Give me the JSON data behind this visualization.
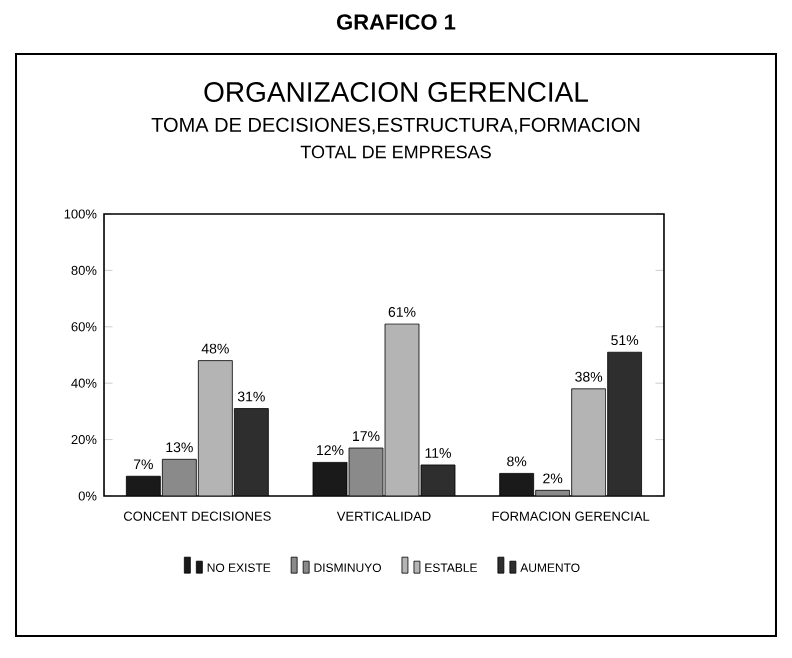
{
  "chart_data": {
    "type": "bar",
    "title": "GRAFICO 1",
    "subtitle": "ORGANIZACION GERENCIAL",
    "annotations": [
      "TOMA DE DECISIONES,ESTRUCTURA,FORMACION",
      "TOTAL DE EMPRESAS"
    ],
    "categories": [
      "CONCENT DECISIONES",
      "VERTICALIDAD",
      "FORMACION GERENCIAL"
    ],
    "series": [
      {
        "name": "NO EXISTE",
        "color": "#1a1a1a",
        "values": [
          7,
          12,
          8
        ],
        "value_labels": [
          "7%",
          "12%",
          "8%"
        ]
      },
      {
        "name": "DISMINUYO",
        "color": "#8a8a8a",
        "values": [
          13,
          17,
          2
        ],
        "value_labels": [
          "13%",
          "17%",
          "2%"
        ]
      },
      {
        "name": "ESTABLE",
        "color": "#b4b4b4",
        "values": [
          48,
          61,
          38
        ],
        "value_labels": [
          "48%",
          "61%",
          "38%"
        ]
      },
      {
        "name": "AUMENTO",
        "color": "#2e2e2e",
        "values": [
          31,
          11,
          51
        ],
        "value_labels": [
          "31%",
          "11%",
          "51%"
        ]
      }
    ],
    "ylim": [
      0,
      100
    ],
    "yticks": [
      {
        "value": 0,
        "label": "0%"
      },
      {
        "value": 20,
        "label": "20%"
      },
      {
        "value": 40,
        "label": "40%"
      },
      {
        "value": 60,
        "label": "60%"
      },
      {
        "value": 80,
        "label": "80%"
      },
      {
        "value": 100,
        "label": "100%"
      }
    ],
    "grid": false,
    "legend": "bottom"
  }
}
